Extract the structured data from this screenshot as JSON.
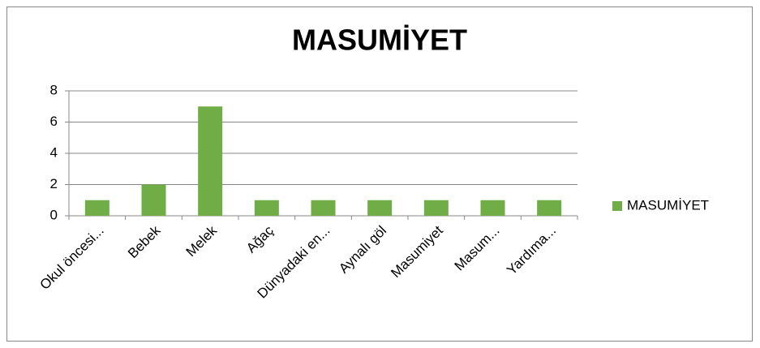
{
  "chart_data": {
    "type": "bar",
    "title": "MASUMİYET",
    "categories": [
      "Okul öncesi...",
      "Bebek",
      "Melek",
      "Ağaç",
      "Dünyadaki en...",
      "Aynalı göl",
      "Masumiyet",
      "Masum...",
      "Yardıma..."
    ],
    "series": [
      {
        "name": "MASUMİYET",
        "color": "#70ad47",
        "values": [
          1,
          2,
          7,
          1,
          1,
          1,
          1,
          1,
          1
        ]
      }
    ],
    "ylim": [
      0,
      8
    ],
    "yticks": [
      0,
      2,
      4,
      6,
      8
    ],
    "grid": true,
    "legend": "right"
  }
}
